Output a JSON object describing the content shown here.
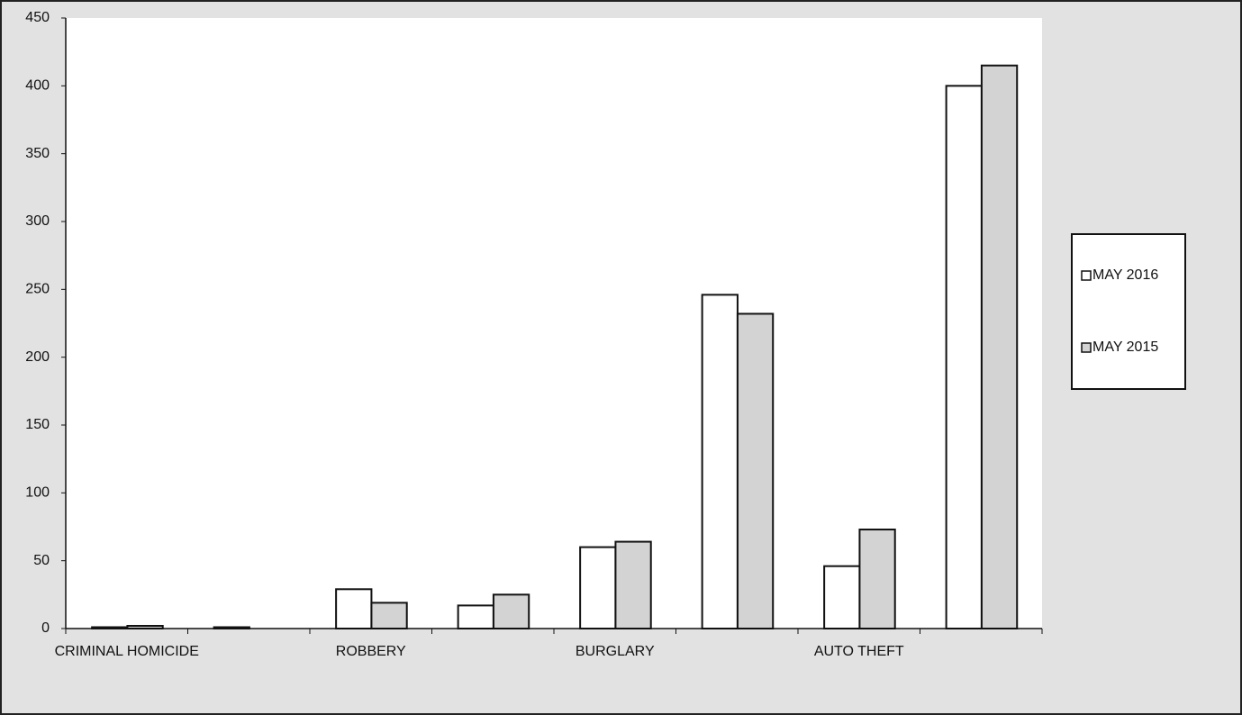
{
  "chart_data": {
    "type": "bar",
    "categories": [
      "CRIMINAL HOMICIDE",
      null,
      "ROBBERY",
      null,
      "BURGLARY",
      null,
      "AUTO THEFT",
      null
    ],
    "series": [
      {
        "name": "MAY 2016",
        "color": "#ffffff",
        "values": [
          1,
          1,
          29,
          17,
          60,
          246,
          46,
          400
        ]
      },
      {
        "name": "MAY 2015",
        "color": "#d3d3d3",
        "values": [
          2,
          0,
          19,
          25,
          64,
          232,
          73,
          415
        ]
      }
    ],
    "ylim": [
      0,
      450
    ],
    "yticks": [
      0,
      50,
      100,
      150,
      200,
      250,
      300,
      350,
      400,
      450
    ],
    "grid": false,
    "legend": "right"
  }
}
